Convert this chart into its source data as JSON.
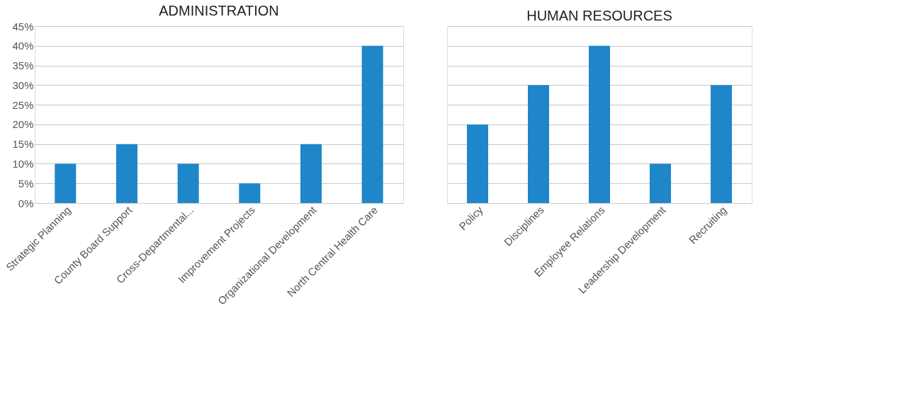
{
  "chart_data": [
    {
      "type": "bar",
      "title": "ADMINISTRATION",
      "categories": [
        "Strategic Planning",
        "County Board Support",
        "Cross-Departmental...",
        "Improvement Projects",
        "Organizational Development",
        "North Central Health Care"
      ],
      "values": [
        10,
        15,
        10,
        5,
        15,
        40
      ],
      "color": "#1f86c9",
      "ylim": [
        0,
        45
      ],
      "yticks": [
        {
          "value": 0,
          "label": "0%"
        },
        {
          "value": 5,
          "label": "5%"
        },
        {
          "value": 10,
          "label": "10%"
        },
        {
          "value": 15,
          "label": "15%"
        },
        {
          "value": 20,
          "label": "20%"
        },
        {
          "value": 25,
          "label": "25%"
        },
        {
          "value": 30,
          "label": "30%"
        },
        {
          "value": 35,
          "label": "35%"
        },
        {
          "value": 40,
          "label": "40%"
        },
        {
          "value": 45,
          "label": "45%"
        }
      ],
      "grid": "y"
    },
    {
      "type": "bar",
      "title": "HUMAN RESOURCES",
      "categories": [
        "Policy",
        "Disciplines",
        "Employee Relations",
        "Leadership Development",
        "Recruiting"
      ],
      "values": [
        20,
        30,
        40,
        10,
        30
      ],
      "color": "#1f86c9",
      "ylim": [
        0,
        45
      ],
      "yticks": [
        {
          "value": 0,
          "label": null
        },
        {
          "value": 5,
          "label": null
        },
        {
          "value": 10,
          "label": null
        },
        {
          "value": 15,
          "label": null
        },
        {
          "value": 20,
          "label": null
        },
        {
          "value": 25,
          "label": null
        },
        {
          "value": 30,
          "label": null
        },
        {
          "value": 35,
          "label": null
        },
        {
          "value": 40,
          "label": null
        },
        {
          "value": 45,
          "label": null
        }
      ],
      "grid": "y",
      "tick_labels": "x"
    }
  ]
}
